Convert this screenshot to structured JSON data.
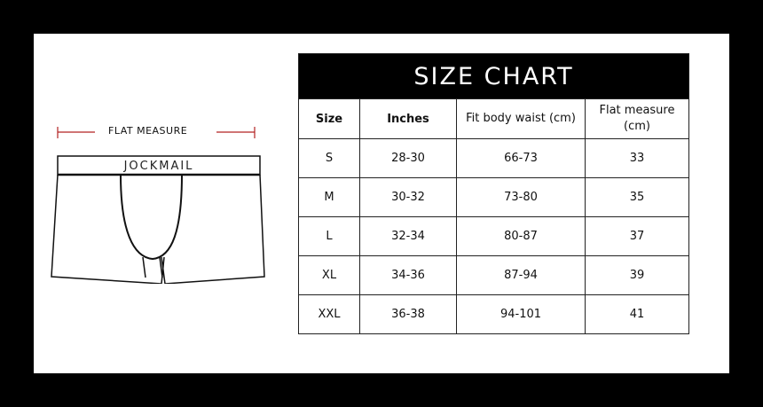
{
  "diagram": {
    "flat_measure_label": "FLAT MEASURE",
    "brand": "JOCKMAIL",
    "accent_color": "#b22222"
  },
  "table": {
    "title": "SIZE CHART",
    "headers": [
      "Size",
      "Inches",
      "Fit body waist (cm)",
      "Flat measure (cm)"
    ],
    "rows": [
      [
        "S",
        "28-30",
        "66-73",
        "33"
      ],
      [
        "M",
        "30-32",
        "73-80",
        "35"
      ],
      [
        "L",
        "32-34",
        "80-87",
        "37"
      ],
      [
        "XL",
        "34-36",
        "87-94",
        "39"
      ],
      [
        "XXL",
        "36-38",
        "94-101",
        "41"
      ]
    ]
  }
}
